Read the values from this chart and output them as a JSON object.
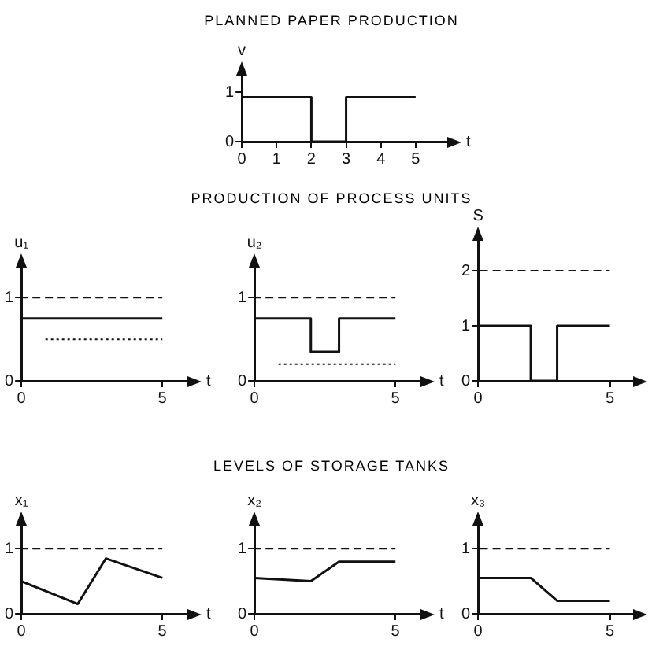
{
  "chart_data": [
    {
      "type": "line",
      "title": "PLANNED PAPER PRODUCTION",
      "xlabel": "t",
      "ylabel": "v",
      "xlim": [
        0,
        6
      ],
      "ylim": [
        0,
        1.4
      ],
      "xticks": [
        0,
        1,
        2,
        3,
        4,
        5
      ],
      "yticks": [
        0,
        1
      ],
      "marker": "none",
      "series": [
        {
          "x": [
            0,
            2,
            2,
            3,
            3,
            5
          ],
          "values": [
            0.9,
            0.9,
            0,
            0,
            0.9,
            0.9
          ],
          "color": "#111111"
        }
      ]
    },
    {
      "type": "line",
      "xlabel": "t",
      "ylabel": "u₁",
      "xlim": [
        0,
        6
      ],
      "ylim": [
        0,
        1.4
      ],
      "xticks": [
        0,
        5
      ],
      "yticks": [
        0,
        1
      ],
      "marker": "none",
      "series": [
        {
          "x": [
            0,
            5
          ],
          "values": [
            0.75,
            0.75
          ],
          "color": "#111111"
        },
        {
          "x": [
            0,
            5
          ],
          "values": [
            1,
            1
          ],
          "color": "#111111",
          "line_style": "dashed"
        },
        {
          "x": [
            0.8,
            5
          ],
          "values": [
            0.5,
            0.5
          ],
          "color": "#111111",
          "line_style": "dotted"
        }
      ]
    },
    {
      "type": "line",
      "title": "PRODUCTION OF PROCESS UNITS",
      "xlabel": "t",
      "ylabel": "u₂",
      "xlim": [
        0,
        6
      ],
      "ylim": [
        0,
        1.4
      ],
      "xticks": [
        0,
        5
      ],
      "yticks": [
        0,
        1
      ],
      "marker": "none",
      "series": [
        {
          "x": [
            0,
            2,
            2,
            3,
            3,
            5
          ],
          "values": [
            0.75,
            0.75,
            0.35,
            0.35,
            0.75,
            0.75
          ],
          "color": "#111111"
        },
        {
          "x": [
            0,
            5
          ],
          "values": [
            1,
            1
          ],
          "color": "#111111",
          "line_style": "dashed"
        },
        {
          "x": [
            0.8,
            5
          ],
          "values": [
            0.2,
            0.2
          ],
          "color": "#111111",
          "line_style": "dotted"
        }
      ]
    },
    {
      "type": "line",
      "ylabel": "S",
      "xlim": [
        0,
        6
      ],
      "ylim": [
        0,
        2.6
      ],
      "xticks": [
        0,
        5
      ],
      "yticks": [
        0,
        1,
        2
      ],
      "marker": "none",
      "series": [
        {
          "x": [
            0,
            2,
            2,
            3,
            3,
            5
          ],
          "values": [
            1,
            1,
            0,
            0,
            1,
            1
          ],
          "color": "#111111"
        },
        {
          "x": [
            0,
            5
          ],
          "values": [
            2,
            2
          ],
          "color": "#111111",
          "line_style": "dashed"
        }
      ]
    },
    {
      "type": "line",
      "xlabel": "t",
      "ylabel": "x₁",
      "xlim": [
        0,
        6
      ],
      "ylim": [
        0,
        1.4
      ],
      "xticks": [
        0,
        5
      ],
      "yticks": [
        0,
        1
      ],
      "marker": "none",
      "series": [
        {
          "x": [
            0,
            2,
            3,
            5
          ],
          "values": [
            0.5,
            0.15,
            0.85,
            0.55
          ],
          "color": "#111111"
        },
        {
          "x": [
            0,
            5
          ],
          "values": [
            1,
            1
          ],
          "color": "#111111",
          "line_style": "dashed"
        }
      ]
    },
    {
      "type": "line",
      "title": "LEVELS OF STORAGE TANKS",
      "xlabel": "t",
      "ylabel": "x₂",
      "xlim": [
        0,
        6
      ],
      "ylim": [
        0,
        1.4
      ],
      "xticks": [
        0,
        5
      ],
      "yticks": [
        0,
        1
      ],
      "marker": "none",
      "series": [
        {
          "x": [
            0,
            2,
            3,
            5
          ],
          "values": [
            0.55,
            0.5,
            0.8,
            0.8
          ],
          "color": "#111111"
        },
        {
          "x": [
            0,
            5
          ],
          "values": [
            1,
            1
          ],
          "color": "#111111",
          "line_style": "dashed"
        }
      ]
    },
    {
      "type": "line",
      "ylabel": "x₃",
      "xlim": [
        0,
        6
      ],
      "ylim": [
        0,
        1.4
      ],
      "xticks": [
        0,
        5
      ],
      "yticks": [
        0,
        1
      ],
      "marker": "none",
      "series": [
        {
          "x": [
            0,
            2,
            3,
            5
          ],
          "values": [
            0.55,
            0.55,
            0.2,
            0.2
          ],
          "color": "#111111"
        },
        {
          "x": [
            0,
            5
          ],
          "values": [
            1,
            1
          ],
          "color": "#111111",
          "line_style": "dashed"
        }
      ]
    }
  ]
}
